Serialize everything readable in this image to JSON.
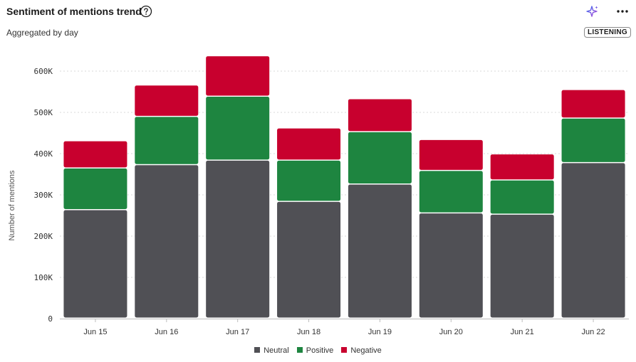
{
  "header": {
    "title": "Sentiment of mentions trend",
    "subtitle": "Aggregated by day",
    "badge": "LISTENING",
    "icons": {
      "help": "help-circle-icon",
      "sparkle": "sparkle-icon",
      "more": "more-horizontal-icon"
    }
  },
  "chart_data": {
    "type": "bar",
    "stacked": true,
    "categories": [
      "Jun 15",
      "Jun 16",
      "Jun 17",
      "Jun 18",
      "Jun 19",
      "Jun 20",
      "Jun 21",
      "Jun 22"
    ],
    "series": [
      {
        "name": "Neutral",
        "color": "#505055",
        "values": [
          263000,
          372000,
          383000,
          283000,
          325000,
          255000,
          252000,
          377000
        ]
      },
      {
        "name": "Positive",
        "color": "#1e8540",
        "values": [
          101000,
          117000,
          155000,
          100000,
          127000,
          103000,
          83000,
          108000
        ]
      },
      {
        "name": "Negative",
        "color": "#c8002e",
        "values": [
          66000,
          76000,
          98000,
          78000,
          80000,
          75000,
          63000,
          69000
        ]
      }
    ],
    "ylabel": "Number of mentions",
    "xlabel": "",
    "ylim": [
      0,
      600000
    ],
    "yticks": [
      0,
      100000,
      200000,
      300000,
      400000,
      500000,
      600000
    ],
    "ytick_labels": [
      "0",
      "100K",
      "200K",
      "300K",
      "400K",
      "500K",
      "600K"
    ],
    "grid": true,
    "legend_position": "bottom"
  }
}
